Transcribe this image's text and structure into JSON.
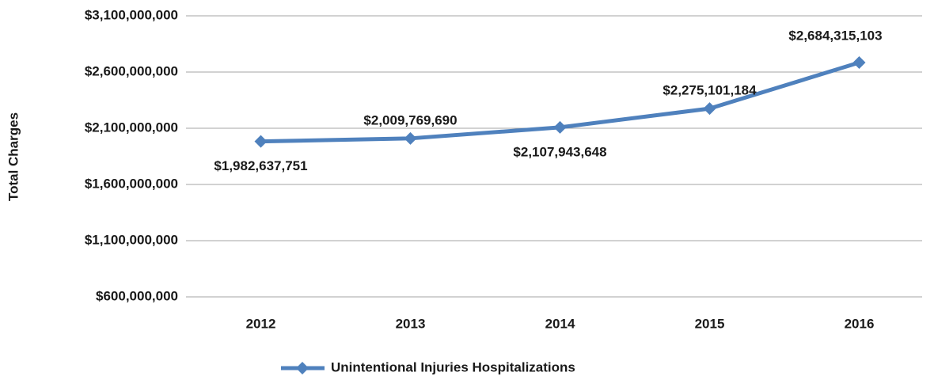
{
  "chart_data": {
    "type": "line",
    "y_axis_label": "Total Charges",
    "categories": [
      "2012",
      "2013",
      "2014",
      "2015",
      "2016"
    ],
    "series": [
      {
        "name": "Unintentional Injuries Hospitalizations",
        "color": "#4f81bd",
        "values": [
          1982637751,
          2009769690,
          2107943648,
          2275101184,
          2684315103
        ],
        "value_labels": [
          "$1,982,637,751",
          "$2,009,769,690",
          "$2,107,943,648",
          "$2,275,101,184",
          "$2,684,315,103"
        ]
      }
    ],
    "ylim": [
      600000000,
      3100000000
    ],
    "yticks": [
      {
        "value": 600000000,
        "label": "$600,000,000"
      },
      {
        "value": 1100000000,
        "label": "$1,100,000,000"
      },
      {
        "value": 1600000000,
        "label": "$1,600,000,000"
      },
      {
        "value": 2100000000,
        "label": "$2,100,000,000"
      },
      {
        "value": 2600000000,
        "label": "$2,600,000,000"
      },
      {
        "value": 3100000000,
        "label": "$3,100,000,000"
      }
    ],
    "grid": true,
    "legend": "bottom"
  }
}
